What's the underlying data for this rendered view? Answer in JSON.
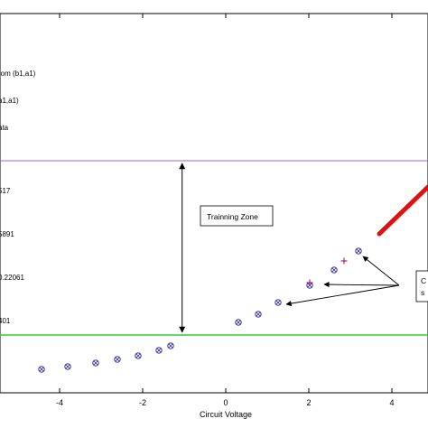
{
  "chart_data": {
    "type": "scatter",
    "xlabel": "Circuit Voltage",
    "ylabel": "",
    "title": "",
    "xlim": [
      -5.5,
      4.8
    ],
    "ylim": [
      -1.6,
      2.4
    ],
    "grid": false,
    "x_ticks": [
      -4,
      -2,
      0,
      2,
      4
    ],
    "x_tick_labels": [
      "-4",
      "-2",
      "0",
      "2",
      "4"
    ],
    "legend_fragments": [
      "rom (b1,a1)",
      "a1,a1)",
      "ata"
    ],
    "left_labels": [
      "517",
      "5891",
      "0.22061",
      "401"
    ],
    "training_zone": {
      "label": "Trainning Zone",
      "lower": -0.68,
      "upper": 1.0,
      "lower_line_color": "#33cc33",
      "upper_line_color": "#9966cc",
      "arrow_x": -1.05
    },
    "series": [
      {
        "marker": "circle-x",
        "color": "#1a1a8c",
        "points": [
          {
            "x": -4.6,
            "y": -1.13
          },
          {
            "x": -3.8,
            "y": -1.1
          },
          {
            "x": -3.1,
            "y": -1.06
          },
          {
            "x": -2.6,
            "y": -1.02
          },
          {
            "x": -2.1,
            "y": -0.97
          },
          {
            "x": -1.6,
            "y": -0.89
          },
          {
            "x": -1.3,
            "y": -0.85
          },
          {
            "x": 0.3,
            "y": -0.52
          },
          {
            "x": 0.8,
            "y": -0.45
          },
          {
            "x": 1.3,
            "y": -0.35
          },
          {
            "x": 2.0,
            "y": -0.1
          },
          {
            "x": 2.6,
            "y": 0.02
          },
          {
            "x": 3.2,
            "y": 0.12
          }
        ]
      },
      {
        "marker": "plus",
        "color": "#990066",
        "points": [
          {
            "x": 2.0,
            "y": -0.07
          },
          {
            "x": 2.9,
            "y": 0.06
          }
        ]
      },
      {
        "marker": "line",
        "color": "#dd1111",
        "points": [
          {
            "x": 3.75,
            "y": 0.38
          },
          {
            "x": 4.8,
            "y": 0.8
          }
        ]
      }
    ],
    "annotation": {
      "label": "C",
      "label2": "s",
      "arrow_targets": [
        {
          "x": 2.65,
          "y": 0.07
        },
        {
          "x": 2.35,
          "y": -0.11
        },
        {
          "x": 1.4,
          "y": -0.33
        }
      ]
    }
  }
}
